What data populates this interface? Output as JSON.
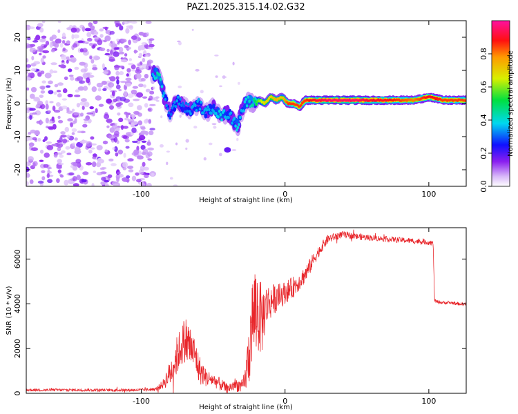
{
  "title": "PAZ1.2025.315.14.02.G32",
  "chart_data": [
    {
      "type": "heatmap",
      "name": "spectrogram",
      "xlabel": "Height of straight line (km)",
      "ylabel": "Frequency (Hz)",
      "xlim": [
        -180,
        126
      ],
      "ylim": [
        -25,
        25
      ],
      "x_ticks": [
        -100,
        0,
        100
      ],
      "x_tick_labels": [
        "-100",
        "0",
        "100"
      ],
      "y_ticks": [
        20,
        10,
        0,
        -10,
        -20
      ],
      "y_tick_labels": [
        "20",
        "10",
        "0",
        "-10",
        "-20"
      ],
      "noise_region_x": [
        -180,
        -92
      ],
      "ridge": {
        "x": [
          -92,
          -88,
          -84,
          -80,
          -75,
          -70,
          -65,
          -60,
          -55,
          -50,
          -45,
          -40,
          -36,
          -33,
          -30,
          -26,
          -22,
          -18,
          -14,
          -10,
          -6,
          -2,
          2,
          6,
          10,
          14,
          20,
          30,
          40,
          50,
          60,
          70,
          80,
          90,
          100,
          110,
          126
        ],
        "freq": [
          9,
          9,
          2,
          -3,
          1,
          -1,
          -2,
          0,
          -3,
          -1,
          -4,
          -3,
          -5,
          -7,
          -2,
          1,
          0,
          1,
          0,
          2,
          1,
          2,
          0,
          0,
          -1,
          1,
          1,
          1,
          1,
          1,
          1,
          1,
          1,
          1,
          2,
          1,
          1
        ],
        "amp": [
          0.35,
          0.45,
          0.35,
          0.3,
          0.35,
          0.3,
          0.35,
          0.35,
          0.35,
          0.35,
          0.4,
          0.35,
          0.35,
          0.4,
          0.35,
          0.4,
          0.45,
          0.6,
          0.7,
          0.7,
          0.75,
          0.7,
          0.85,
          0.85,
          0.85,
          0.85,
          0.9,
          0.95,
          0.95,
          0.95,
          0.9,
          0.9,
          0.85,
          0.8,
          0.9,
          0.85,
          0.85
        ]
      },
      "colorbar": {
        "label": "Normalized spectral amplitude",
        "range": [
          0,
          1
        ],
        "ticks": [
          0.0,
          0.2,
          0.4,
          0.6,
          0.8
        ],
        "tick_labels": [
          "0.0",
          "0.2",
          "0.4",
          "0.6",
          "0.8"
        ]
      }
    },
    {
      "type": "line",
      "name": "snr",
      "xlabel": "Height of straight line (km)",
      "ylabel": "SNR (10 * v/v)",
      "xlim": [
        -180,
        126
      ],
      "ylim": [
        0,
        7400
      ],
      "x_ticks": [
        -100,
        0,
        100
      ],
      "x_tick_labels": [
        "-100",
        "0",
        "100"
      ],
      "y_ticks": [
        0,
        2000,
        4000,
        6000
      ],
      "y_tick_labels": [
        "0",
        "2000",
        "4000",
        "6000"
      ],
      "color": "#e8262b",
      "series": [
        {
          "name": "SNR",
          "x": [
            -180,
            -160,
            -140,
            -120,
            -100,
            -90,
            -85,
            -80,
            -75,
            -70,
            -68,
            -65,
            -62,
            -60,
            -55,
            -50,
            -45,
            -40,
            -35,
            -30,
            -28,
            -25,
            -23,
            -20,
            -18,
            -16,
            -15,
            -12,
            -8,
            -5,
            0,
            5,
            10,
            15,
            20,
            25,
            30,
            40,
            50,
            60,
            70,
            80,
            90,
            100,
            103,
            104,
            105,
            110,
            115,
            120,
            126
          ],
          "mean": [
            150,
            150,
            150,
            140,
            150,
            180,
            400,
            900,
            1700,
            2400,
            2300,
            2000,
            1600,
            1100,
            700,
            600,
            400,
            200,
            400,
            300,
            500,
            1800,
            3200,
            3800,
            3500,
            3200,
            3600,
            4000,
            4200,
            4300,
            4500,
            4700,
            5000,
            5400,
            6000,
            6500,
            6900,
            7100,
            7000,
            6950,
            6900,
            6850,
            6800,
            6750,
            6700,
            4150,
            4100,
            4050,
            4050,
            4000,
            3980
          ],
          "amp": [
            60,
            60,
            60,
            60,
            60,
            80,
            200,
            600,
            900,
            1000,
            1200,
            900,
            800,
            700,
            400,
            300,
            300,
            200,
            300,
            300,
            500,
            1500,
            2000,
            2200,
            1800,
            1500,
            1300,
            900,
            700,
            600,
            500,
            500,
            400,
            400,
            300,
            250,
            200,
            150,
            150,
            130,
            120,
            120,
            120,
            120,
            120,
            80,
            80,
            70,
            70,
            70,
            70
          ]
        }
      ]
    }
  ]
}
